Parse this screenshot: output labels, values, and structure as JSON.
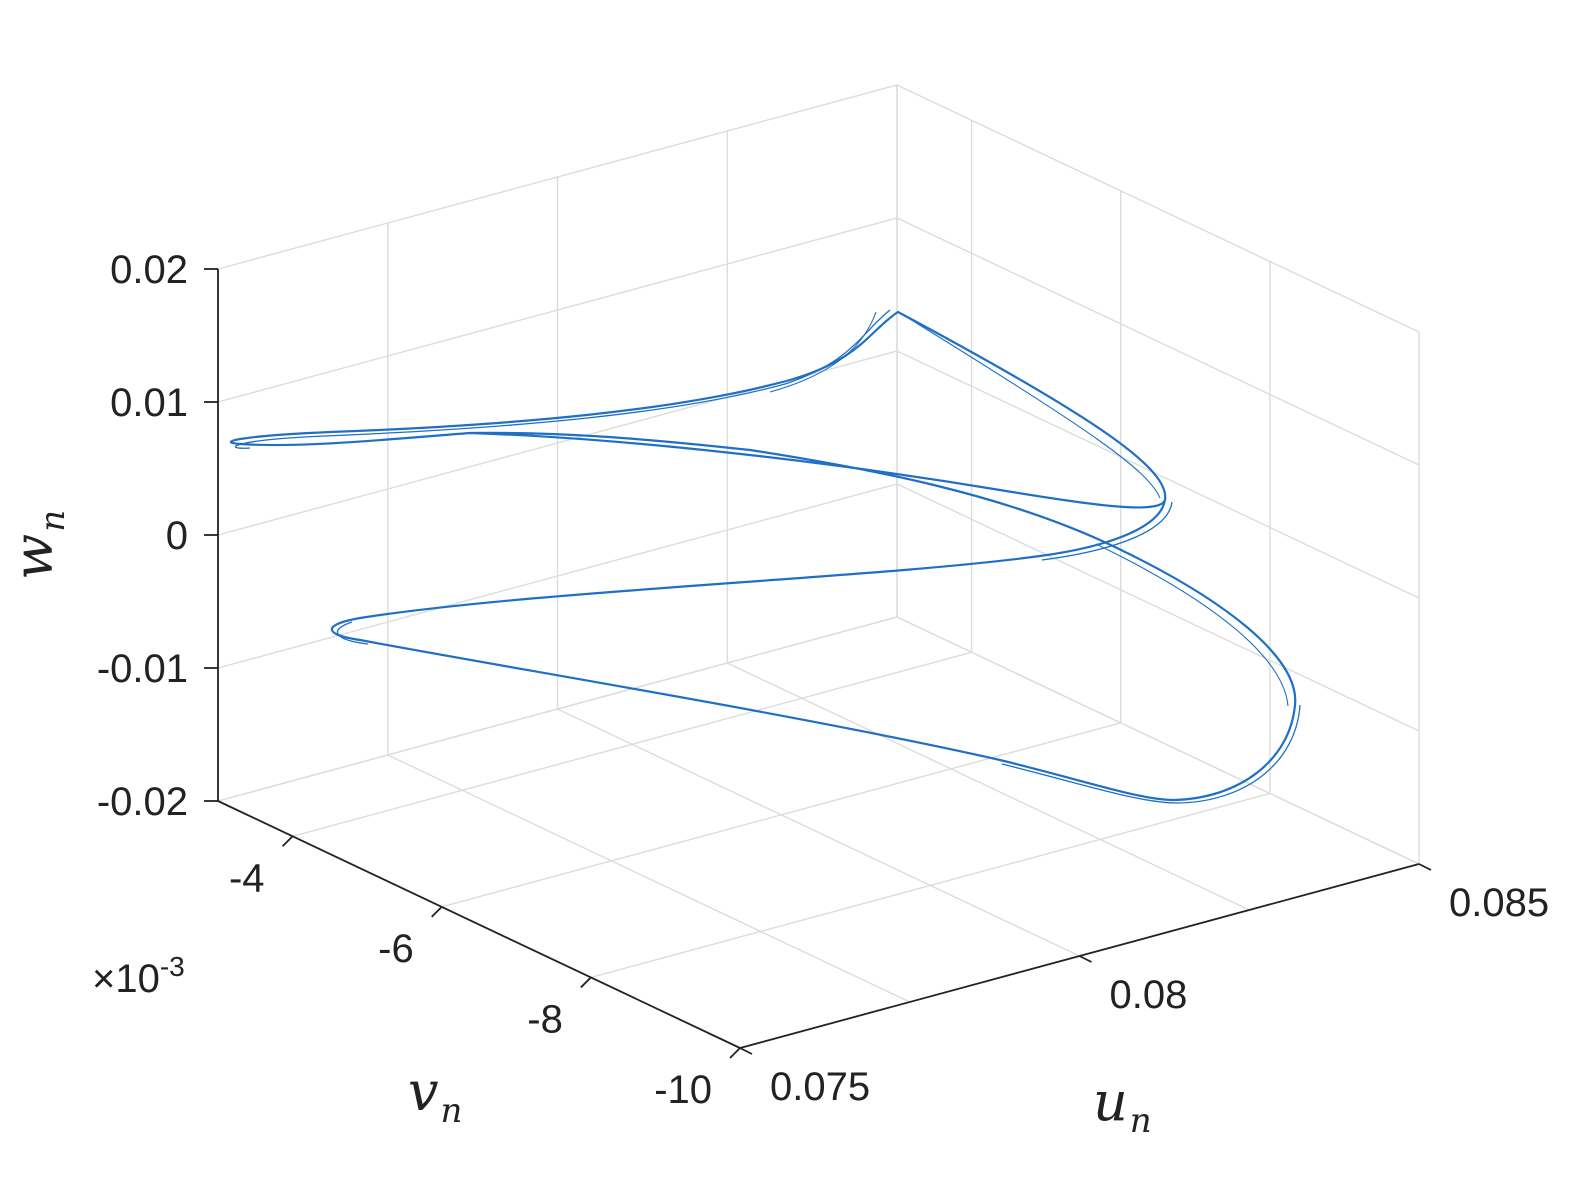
{
  "chart_data": {
    "type": "line",
    "projection": "3d",
    "title": "",
    "grid": true,
    "line_color": "#1f6fc4",
    "axis_color": "#222222",
    "grid_color": "#dcdcdc",
    "x_axis": {
      "label_main": "u",
      "label_sub": "n",
      "lim": [
        0.075,
        0.085
      ],
      "ticks": [
        0.075,
        0.08,
        0.085
      ],
      "tick_labels": [
        "0.075",
        "0.08",
        "0.085"
      ]
    },
    "y_axis": {
      "label_main": "v",
      "label_sub": "n",
      "lim": [
        -10,
        -3
      ],
      "ticks": [
        -4,
        -6,
        -8,
        -10
      ],
      "tick_labels": [
        "-4",
        "-6",
        "-8",
        "-10"
      ],
      "exponent_prefix": "×10",
      "exponent_power": "-3"
    },
    "z_axis": {
      "label_main": "w",
      "label_sub": "n",
      "lim": [
        -0.02,
        0.02
      ],
      "ticks": [
        0.02,
        0.01,
        0,
        -0.01,
        -0.02
      ],
      "tick_labels": [
        "0.02",
        "0.01",
        "0",
        "-0.01",
        "-0.02"
      ]
    },
    "series": [
      {
        "description_points": [
          {
            "u": 0.0808,
            "v": -3.6,
            "w": 0.017
          },
          {
            "u": 0.0805,
            "v": -4.0,
            "w": 0.0145
          },
          {
            "u": 0.0795,
            "v": -4.6,
            "w": 0.01
          },
          {
            "u": 0.0785,
            "v": -4.3,
            "w": 0.008
          },
          {
            "u": 0.0772,
            "v": -4.0,
            "w": 0.0062
          },
          {
            "u": 0.0765,
            "v": -3.7,
            "w": 0.0055
          }
        ]
      }
    ]
  }
}
